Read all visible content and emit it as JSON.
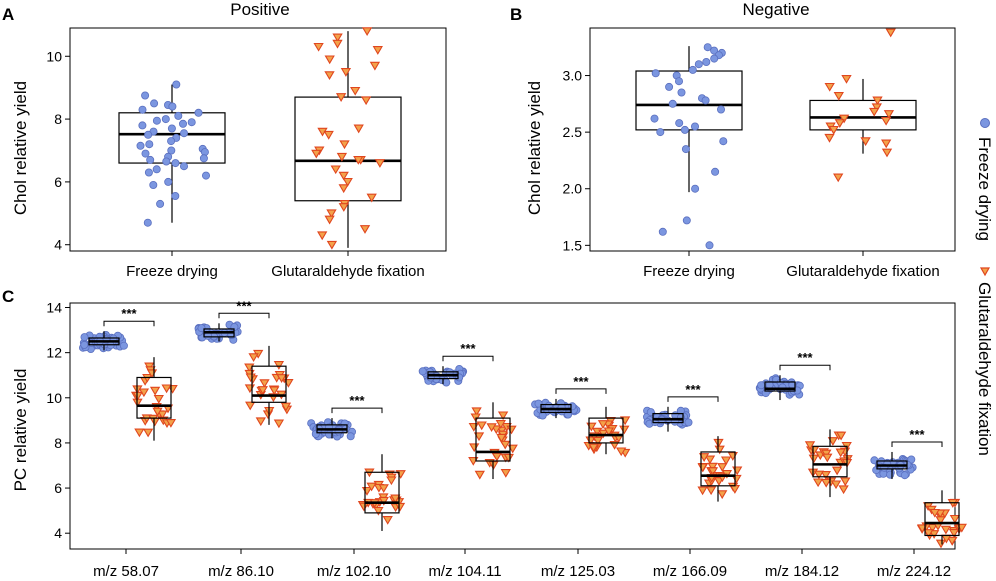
{
  "figure": {
    "legend": {
      "entries": [
        {
          "label": "Freeze drying",
          "marker": "circle",
          "fill": "#7b96e0",
          "stroke": "#5a6fbf"
        },
        {
          "label": "Glutaraldehyde fixation",
          "marker": "triangle-down",
          "fill": "#f3a24a",
          "stroke": "#e0461f"
        }
      ]
    }
  },
  "chart_data": [
    {
      "panel": "A",
      "type": "boxplot",
      "title": "Positive",
      "xlabel": "",
      "ylabel": "Chol relative yield",
      "ylim": [
        3.8,
        10.9
      ],
      "yticks": [
        4,
        6,
        8,
        10
      ],
      "categories": [
        "Freeze drying",
        "Glutaraldehyde fixation"
      ],
      "boxes": [
        {
          "q1": 6.6,
          "median": 7.52,
          "q3": 8.2,
          "lower": 4.7,
          "upper": 9.1
        },
        {
          "q1": 5.4,
          "median": 6.67,
          "q3": 8.7,
          "lower": 3.9,
          "upper": 10.8
        }
      ],
      "points": [
        [
          7.0,
          9.1,
          8.75,
          8.5,
          8.45,
          8.4,
          8.3,
          8.2,
          8.1,
          8.0,
          7.95,
          7.9,
          7.85,
          7.8,
          7.7,
          7.6,
          7.55,
          7.5,
          7.4,
          7.3,
          7.2,
          7.15,
          7.05,
          6.95,
          6.9,
          6.8,
          6.75,
          6.7,
          6.65,
          6.6,
          6.5,
          6.4,
          6.3,
          6.2,
          6.0,
          5.9,
          5.55,
          5.3,
          4.7
        ],
        [
          10.8,
          10.6,
          10.4,
          10.3,
          10.2,
          9.9,
          9.7,
          9.5,
          9.4,
          8.9,
          8.7,
          8.6,
          7.7,
          7.6,
          7.5,
          7.2,
          7.0,
          6.9,
          6.8,
          6.7,
          6.7,
          6.6,
          6.4,
          6.2,
          6.0,
          5.8,
          5.5,
          5.3,
          5.2,
          5.0,
          4.8,
          4.5,
          4.3,
          4.0
        ]
      ]
    },
    {
      "panel": "B",
      "type": "boxplot",
      "title": "Negative",
      "xlabel": "",
      "ylabel": "Chol relative yield",
      "ylim": [
        1.45,
        3.42
      ],
      "yticks": [
        1.5,
        2.0,
        2.5,
        3.0
      ],
      "ytick_labels": [
        "1.5",
        "2.0",
        "2.5",
        "3.0"
      ],
      "categories": [
        "Freeze drying",
        "Glutaraldehyde fixation"
      ],
      "boxes": [
        {
          "q1": 2.52,
          "median": 2.74,
          "q3": 3.04,
          "lower": 1.97,
          "upper": 3.26
        },
        {
          "q1": 2.52,
          "median": 2.63,
          "q3": 2.78,
          "lower": 2.31,
          "upper": 2.97
        }
      ],
      "points": [
        [
          3.25,
          3.22,
          3.2,
          3.18,
          3.15,
          3.12,
          3.1,
          3.05,
          3.02,
          3.0,
          2.95,
          2.9,
          2.85,
          2.8,
          2.78,
          2.75,
          2.7,
          2.62,
          2.58,
          2.55,
          2.52,
          2.5,
          2.42,
          2.35,
          2.15,
          2.0,
          1.72,
          1.62,
          1.5
        ],
        [
          3.38,
          2.97,
          2.9,
          2.82,
          2.78,
          2.72,
          2.68,
          2.66,
          2.62,
          2.6,
          2.58,
          2.55,
          2.52,
          2.45,
          2.42,
          2.4,
          2.32,
          2.1
        ]
      ]
    },
    {
      "panel": "C",
      "type": "boxplot",
      "title": "",
      "xlabel": "",
      "ylabel": "PC relative yield",
      "ylim": [
        3.3,
        14.2
      ],
      "yticks": [
        4,
        6,
        8,
        10,
        12,
        14
      ],
      "categories": [
        "m/z 58.07",
        "m/z 86.10",
        "m/z 102.10",
        "m/z 104.11",
        "m/z 125.03",
        "m/z 166.09",
        "m/z 184.12",
        "m/z 224.12"
      ],
      "significance": [
        "***",
        "***",
        "***",
        "***",
        "***",
        "***",
        "***",
        "***"
      ],
      "groups": [
        {
          "freeze": {
            "center": 12.5,
            "spread": 0.4,
            "q1": 12.35,
            "median": 12.5,
            "q3": 12.65,
            "lower": 12.1,
            "upper": 12.95
          },
          "glut": {
            "center": 9.8,
            "spread": 1.9,
            "q1": 9.1,
            "median": 9.65,
            "q3": 10.9,
            "lower": 8.1,
            "upper": 11.8
          }
        },
        {
          "freeze": {
            "center": 12.9,
            "spread": 0.4,
            "q1": 12.7,
            "median": 12.9,
            "q3": 13.05,
            "lower": 12.5,
            "upper": 13.3
          },
          "glut": {
            "center": 10.4,
            "spread": 1.8,
            "q1": 9.8,
            "median": 10.1,
            "q3": 11.4,
            "lower": 8.8,
            "upper": 12.3
          }
        },
        {
          "freeze": {
            "center": 8.6,
            "spread": 0.4,
            "q1": 8.45,
            "median": 8.6,
            "q3": 8.8,
            "lower": 8.2,
            "upper": 9.1
          },
          "glut": {
            "center": 5.6,
            "spread": 1.8,
            "q1": 4.9,
            "median": 5.35,
            "q3": 6.7,
            "lower": 4.1,
            "upper": 7.5
          }
        },
        {
          "freeze": {
            "center": 11.0,
            "spread": 0.35,
            "q1": 10.85,
            "median": 11.0,
            "q3": 11.15,
            "lower": 10.6,
            "upper": 11.4
          },
          "glut": {
            "center": 8.0,
            "spread": 1.6,
            "q1": 7.2,
            "median": 7.6,
            "q3": 9.1,
            "lower": 6.4,
            "upper": 9.8
          }
        },
        {
          "freeze": {
            "center": 9.5,
            "spread": 0.35,
            "q1": 9.35,
            "median": 9.5,
            "q3": 9.7,
            "lower": 9.1,
            "upper": 9.95
          },
          "glut": {
            "center": 8.4,
            "spread": 0.9,
            "q1": 8.0,
            "median": 8.35,
            "q3": 9.1,
            "lower": 7.5,
            "upper": 9.6
          }
        },
        {
          "freeze": {
            "center": 9.1,
            "spread": 0.4,
            "q1": 8.9,
            "median": 9.05,
            "q3": 9.3,
            "lower": 8.5,
            "upper": 9.6
          },
          "glut": {
            "center": 6.8,
            "spread": 1.3,
            "q1": 6.1,
            "median": 6.55,
            "q3": 7.6,
            "lower": 5.4,
            "upper": 8.3
          }
        },
        {
          "freeze": {
            "center": 10.5,
            "spread": 0.4,
            "q1": 10.3,
            "median": 10.4,
            "q3": 10.7,
            "lower": 9.9,
            "upper": 11.0
          },
          "glut": {
            "center": 7.2,
            "spread": 1.5,
            "q1": 6.5,
            "median": 7.05,
            "q3": 7.85,
            "lower": 5.6,
            "upper": 8.6
          }
        },
        {
          "freeze": {
            "center": 7.0,
            "spread": 0.5,
            "q1": 6.85,
            "median": 7.0,
            "q3": 7.2,
            "lower": 6.4,
            "upper": 7.6
          },
          "glut": {
            "center": 4.6,
            "spread": 1.3,
            "q1": 3.9,
            "median": 4.45,
            "q3": 5.35,
            "lower": 3.5,
            "upper": 5.9
          }
        }
      ]
    }
  ]
}
